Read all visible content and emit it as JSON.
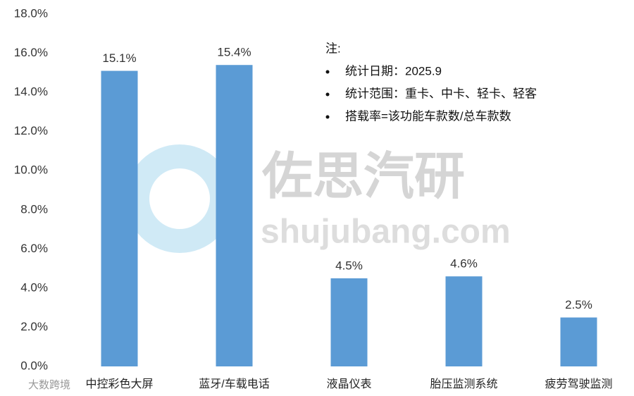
{
  "chart_data": {
    "type": "bar",
    "categories": [
      "中控彩色大屏",
      "蓝牙/车载电话",
      "液晶仪表",
      "胎压监测系统",
      "疲劳驾驶监测"
    ],
    "values": [
      15.1,
      15.4,
      4.5,
      4.6,
      2.5
    ],
    "value_labels": [
      "15.1%",
      "15.4%",
      "4.5%",
      "4.6%",
      "2.5%"
    ],
    "color": "#5b9bd5",
    "ylim": [
      0,
      18
    ],
    "yticks": [
      {
        "value": 0,
        "label": "0.0%"
      },
      {
        "value": 2,
        "label": "2.0%"
      },
      {
        "value": 4,
        "label": "4.0%"
      },
      {
        "value": 6,
        "label": "6.0%"
      },
      {
        "value": 8,
        "label": "8.0%"
      },
      {
        "value": 10,
        "label": "10.0%"
      },
      {
        "value": 12,
        "label": "12.0%"
      },
      {
        "value": 14,
        "label": "14.0%"
      },
      {
        "value": 16,
        "label": "16.0%"
      },
      {
        "value": 18,
        "label": "18.0%"
      }
    ],
    "grid": false,
    "note": {
      "title": "注:",
      "items": [
        "统计日期：2025.9",
        "统计范围：重卡、中卡、轻卡、轻客",
        "搭载率=该功能车款数/总车款数"
      ]
    },
    "watermark": {
      "brand": "佐思汽研",
      "site": "shujubang.com",
      "corner": "大数跨境"
    }
  }
}
